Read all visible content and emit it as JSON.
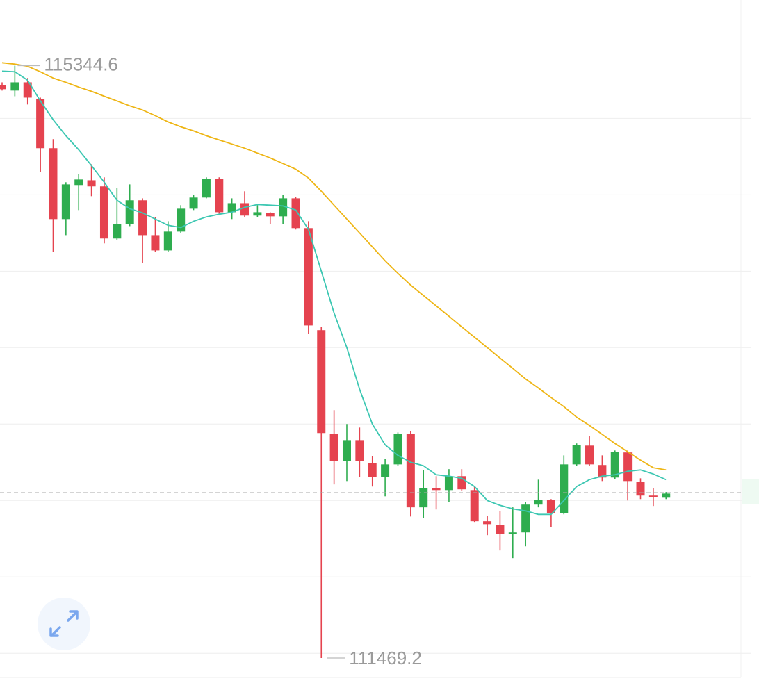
{
  "chart_data": {
    "type": "candlestick",
    "up_color": "#2ead4f",
    "down_color": "#e5434f",
    "ohlc": {
      "open": [
        115218,
        115182,
        115236,
        115127,
        114805,
        114341,
        114564,
        114595,
        114555,
        114214,
        114309,
        114464,
        114236,
        114136,
        114259,
        114409,
        114482,
        114605,
        114386,
        114445,
        114364,
        114382,
        114359,
        114477,
        114282,
        113614,
        112936,
        112759,
        112895,
        112745,
        112655,
        112736,
        112936,
        112455,
        112582,
        112568,
        112659,
        112568,
        112364,
        112341,
        112282,
        112291,
        112473,
        112505,
        112418,
        112736,
        112859,
        112732,
        112650,
        112814,
        112623,
        112532,
        112518
      ],
      "high": [
        115236,
        115344.6,
        115264,
        115136,
        114864,
        114582,
        114636,
        114700,
        114614,
        114545,
        114568,
        114477,
        114355,
        114327,
        114432,
        114500,
        114614,
        114614,
        114477,
        114523,
        114432,
        114386,
        114500,
        114486,
        114327,
        113636,
        113091,
        113000,
        112977,
        112791,
        112773,
        112945,
        112955,
        112700,
        112659,
        112705,
        112705,
        112591,
        112400,
        112432,
        112455,
        112491,
        112636,
        112509,
        112795,
        112873,
        112923,
        112795,
        112827,
        112827,
        112645,
        112582,
        112555
      ],
      "low": [
        115182,
        115145,
        115091,
        114650,
        114127,
        114236,
        114400,
        114491,
        114182,
        114205,
        114295,
        114055,
        114127,
        114127,
        114250,
        114400,
        114477,
        114377,
        114341,
        114355,
        114355,
        114309,
        114309,
        114273,
        113591,
        111469.2,
        112605,
        112627,
        112655,
        112591,
        112527,
        112727,
        112395,
        112386,
        112441,
        112491,
        112564,
        112355,
        112273,
        112173,
        112123,
        112200,
        112455,
        112327,
        112409,
        112727,
        112727,
        112627,
        112641,
        112500,
        112509,
        112464,
        112509
      ],
      "close": [
        115191,
        115236,
        115136,
        114805,
        114341,
        114568,
        114600,
        114555,
        114214,
        114309,
        114464,
        114236,
        114136,
        114259,
        114409,
        114482,
        114605,
        114386,
        114445,
        114364,
        114386,
        114359,
        114477,
        114282,
        113645,
        112941,
        112759,
        112895,
        112759,
        112655,
        112736,
        112936,
        112455,
        112582,
        112568,
        112659,
        112573,
        112364,
        112345,
        112282,
        112291,
        112473,
        112505,
        112418,
        112736,
        112864,
        112736,
        112650,
        112818,
        112627,
        112532,
        112523,
        112545
      ]
    },
    "moving_averages": [
      {
        "color": "#3cc7b2",
        "values": [
          115309,
          115305,
          115250,
          115114,
          114991,
          114886,
          114795,
          114691,
          114582,
          114464,
          114409,
          114382,
          114341,
          114300,
          114286,
          114327,
          114355,
          114373,
          114386,
          114418,
          114436,
          114432,
          114427,
          114400,
          114273,
          114000,
          113727,
          113500,
          113227,
          113000,
          112864,
          112795,
          112750,
          112727,
          112668,
          112659,
          112645,
          112591,
          112500,
          112468,
          112445,
          112432,
          112409,
          112409,
          112500,
          112591,
          112636,
          112659,
          112668,
          112691,
          112700,
          112673,
          112636
        ]
      },
      {
        "color": "#eeb514",
        "values": [
          115364,
          115355,
          115341,
          115305,
          115264,
          115236,
          115205,
          115177,
          115145,
          115114,
          115082,
          115055,
          115018,
          114977,
          114945,
          114918,
          114886,
          114859,
          114832,
          114805,
          114773,
          114741,
          114705,
          114668,
          114609,
          114523,
          114432,
          114341,
          114250,
          114159,
          114068,
          113986,
          113909,
          113841,
          113773,
          113705,
          113636,
          113568,
          113500,
          113432,
          113364,
          113295,
          113236,
          113173,
          113114,
          113045,
          112991,
          112932,
          112873,
          112818,
          112764,
          112714,
          112700
        ]
      }
    ],
    "last_price": 112550,
    "ylim": [
      111310,
      115770
    ],
    "yticks": [
      111500,
      112000,
      112500,
      113000,
      113500,
      114000,
      114500,
      115000
    ],
    "grid": true
  }
}
